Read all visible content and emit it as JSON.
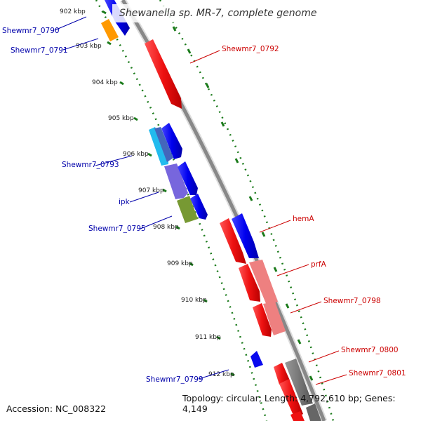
{
  "title": "Shewanella sp. MR-7, complete genome",
  "footer": {
    "accession": "Accession: NC_008322",
    "summary": "Topology: circular; Length: 4,792,610 bp; Genes: 4,149"
  },
  "ticks": [
    {
      "label": "902 kbp"
    },
    {
      "label": "903 kbp"
    },
    {
      "label": "904 kbp"
    },
    {
      "label": "905 kbp"
    },
    {
      "label": "906 kbp"
    },
    {
      "label": "907 kbp"
    },
    {
      "label": "908 kbp"
    },
    {
      "label": "909 kbp"
    },
    {
      "label": "910 kbp"
    },
    {
      "label": "911 kbp"
    },
    {
      "label": "912 kbp"
    }
  ],
  "gene_labels": {
    "left": [
      "Shewmr7_0790",
      "Shewmr7_0791",
      "Shewmr7_0793",
      "ipk",
      "Shewmr7_0795",
      "Shewmr7_0799"
    ],
    "right": [
      "Shewmr7_0792",
      "hemA",
      "prfA",
      "Shewmr7_0798",
      "Shewmr7_0800",
      "Shewmr7_0801"
    ]
  },
  "colors": {
    "left_label": "#0000aa",
    "right_label": "#cc0000",
    "backbone": "#888888",
    "tick": "#1a7a1a",
    "blue": "#0a0aee",
    "red": "#ee1111",
    "orange": "#ff9900",
    "light_blue": "#22bbee",
    "purple": "#7766dd",
    "olive": "#779933",
    "salmon": "#ee8080",
    "dark_gray": "#666666"
  }
}
